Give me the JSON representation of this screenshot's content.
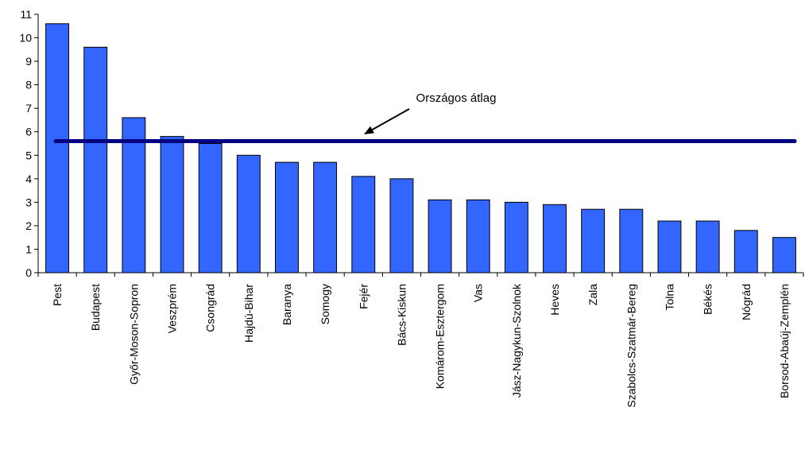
{
  "chart_data": {
    "type": "bar",
    "categories": [
      "Pest",
      "Budapest",
      "Győr-Moson-Sopron",
      "Veszprém",
      "Csongrád",
      "Hajdú-Bihar",
      "Baranya",
      "Somogy",
      "Fejér",
      "Bács-Kiskun",
      "Komárom-Esztergom",
      "Vas",
      "Jász-Nagykun-Szolnok",
      "Heves",
      "Zala",
      "Szabolcs-Szatmár-Bereg",
      "Tolna",
      "Békés",
      "Nógrád",
      "Borsod-Abaúj-Zemplén"
    ],
    "values": [
      10.6,
      9.6,
      6.6,
      5.8,
      5.5,
      5.0,
      4.7,
      4.7,
      4.1,
      4.0,
      3.1,
      3.1,
      3.0,
      2.9,
      2.7,
      2.7,
      2.2,
      2.2,
      1.8,
      1.5
    ],
    "ylim": [
      0,
      11
    ],
    "yticks": [
      0,
      1,
      2,
      3,
      4,
      5,
      6,
      7,
      8,
      9,
      10,
      11
    ],
    "reference_line": {
      "label": "Országos átlag",
      "value": 5.6,
      "color": "#000080"
    },
    "bar_color": "#3366FF",
    "grid": false,
    "legend": "none"
  }
}
